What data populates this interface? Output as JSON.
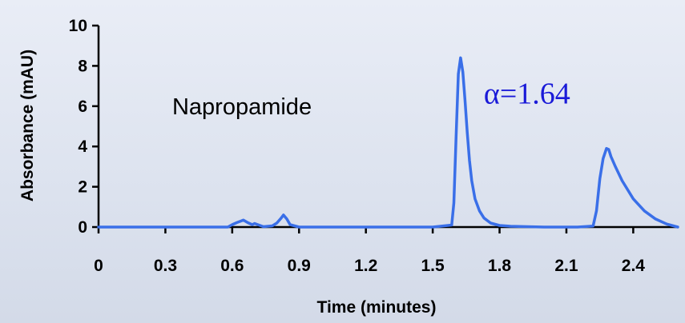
{
  "chart_data": {
    "type": "line",
    "title": "",
    "xlabel": "Time (minutes)",
    "ylabel": "Absorbance (mAU)",
    "xlim": [
      0,
      2.6
    ],
    "ylim": [
      0,
      10
    ],
    "x_ticks": [
      0,
      0.3,
      0.6,
      0.9,
      1.2,
      1.5,
      1.8,
      2.1,
      2.4
    ],
    "x_tick_labels": [
      "0",
      "0.3",
      "0.6",
      "0.9",
      "1.2",
      "1.5",
      "1.8",
      "2.1",
      "2.4"
    ],
    "y_ticks": [
      0,
      2,
      4,
      6,
      8,
      10
    ],
    "y_tick_labels": [
      "0",
      "2",
      "4",
      "6",
      "8",
      "10"
    ],
    "grid": false,
    "legend": "none",
    "series": [
      {
        "color": "#3a6fe8",
        "x": [
          0.0,
          0.3,
          0.58,
          0.6,
          0.62,
          0.64,
          0.65,
          0.67,
          0.69,
          0.7,
          0.72,
          0.74,
          0.78,
          0.8,
          0.82,
          0.83,
          0.845,
          0.86,
          0.9,
          1.2,
          1.5,
          1.585,
          1.595,
          1.605,
          1.615,
          1.625,
          1.635,
          1.645,
          1.655,
          1.665,
          1.675,
          1.69,
          1.71,
          1.73,
          1.76,
          1.8,
          1.85,
          2.0,
          2.15,
          2.22,
          2.235,
          2.25,
          2.265,
          2.28,
          2.29,
          2.3,
          2.32,
          2.35,
          2.4,
          2.45,
          2.5,
          2.55,
          2.6
        ],
        "y": [
          0.0,
          0.0,
          0.0,
          0.12,
          0.22,
          0.3,
          0.35,
          0.22,
          0.12,
          0.18,
          0.1,
          0.02,
          0.06,
          0.2,
          0.45,
          0.6,
          0.4,
          0.12,
          0.0,
          0.0,
          0.0,
          0.1,
          1.2,
          4.5,
          7.6,
          8.4,
          7.7,
          6.3,
          4.7,
          3.3,
          2.3,
          1.4,
          0.8,
          0.45,
          0.2,
          0.08,
          0.04,
          0.0,
          0.0,
          0.05,
          0.8,
          2.4,
          3.4,
          3.9,
          3.85,
          3.5,
          3.0,
          2.3,
          1.4,
          0.8,
          0.4,
          0.15,
          0.0
        ]
      }
    ],
    "annotations": [
      {
        "text": "Napropamide",
        "x": 0.64,
        "y": 6.0
      },
      {
        "text": "α=1.64",
        "x": 1.92,
        "y": 6.6,
        "color": "#1a1ad8"
      }
    ]
  }
}
